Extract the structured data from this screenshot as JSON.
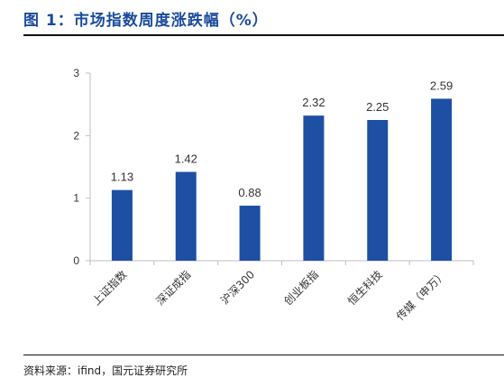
{
  "header": {
    "title": "图 1：市场指数周度涨跌幅（%）"
  },
  "footer": {
    "source": "资料来源：ifind，国元证券研究所"
  },
  "colors": {
    "bar": "#1d50a3",
    "title": "#1a4a9c",
    "axis": "#bfbfbf"
  },
  "chart_data": {
    "type": "bar",
    "title": "图 1：市场指数周度涨跌幅（%）",
    "categories": [
      "上证指数",
      "深证成指",
      "沪深300",
      "创业板指",
      "恒生科技",
      "传媒（申万）"
    ],
    "values": [
      1.13,
      1.42,
      0.88,
      2.32,
      2.25,
      2.59
    ],
    "value_labels": [
      "1.13",
      "1.42",
      "0.88",
      "2.32",
      "2.25",
      "2.59"
    ],
    "yticks": [
      "0",
      "1",
      "2",
      "3"
    ],
    "ylim": [
      0,
      3
    ],
    "xlabel": "",
    "ylabel": "",
    "grid": false,
    "legend": "none"
  }
}
